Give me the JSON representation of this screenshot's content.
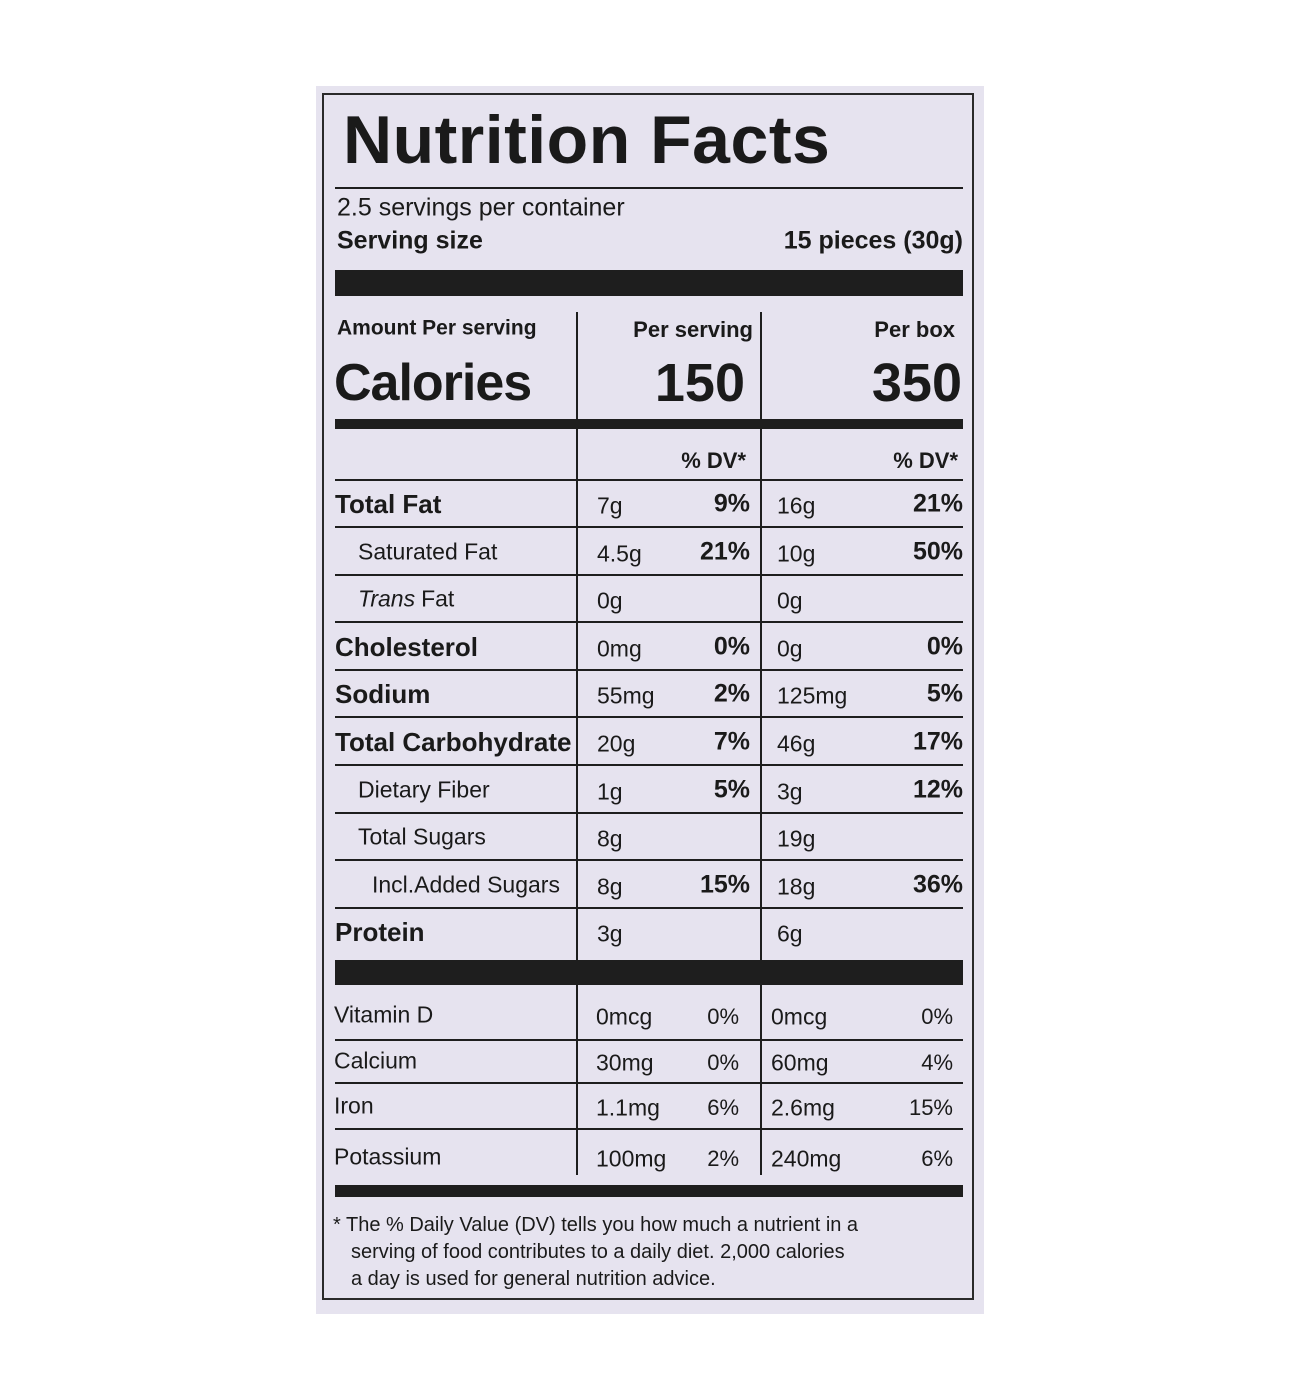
{
  "title": "Nutrition Facts",
  "servings_per_container": "2.5 servings per container",
  "serving_size": {
    "label": "Serving size",
    "value": "15 pieces (30g)"
  },
  "calories": {
    "amount_label": "Amount Per serving",
    "per_serving_label": "Per serving",
    "per_box_label": "Per box",
    "label": "Calories",
    "per_serving": "150",
    "per_box": "350"
  },
  "dv_header": {
    "per_serving": "% DV*",
    "per_box": "% DV*"
  },
  "nutrients": [
    {
      "label": "Total Fat",
      "style": "main",
      "per_serving": {
        "amount": "7g",
        "dv": "9%"
      },
      "per_box": {
        "amount": "16g",
        "dv": "21%"
      }
    },
    {
      "label": "Saturated Fat",
      "style": "sub",
      "per_serving": {
        "amount": "4.5g",
        "dv": "21%"
      },
      "per_box": {
        "amount": "10g",
        "dv": "50%"
      }
    },
    {
      "label_prefix": "Trans",
      "label": "Fat",
      "style": "sub",
      "per_serving": {
        "amount": "0g"
      },
      "per_box": {
        "amount": "0g"
      }
    },
    {
      "label": "Cholesterol",
      "style": "main",
      "per_serving": {
        "amount": "0mg",
        "dv": "0%"
      },
      "per_box": {
        "amount": "0g",
        "dv": "0%"
      }
    },
    {
      "label": "Sodium",
      "style": "main",
      "per_serving": {
        "amount": "55mg",
        "dv": "2%"
      },
      "per_box": {
        "amount": "125mg",
        "dv": "5%"
      }
    },
    {
      "label": "Total Carbohydrate",
      "style": "main",
      "per_serving": {
        "amount": "20g",
        "dv": "7%"
      },
      "per_box": {
        "amount": "46g",
        "dv": "17%"
      }
    },
    {
      "label": "Dietary Fiber",
      "style": "sub",
      "per_serving": {
        "amount": "1g",
        "dv": "5%"
      },
      "per_box": {
        "amount": "3g",
        "dv": "12%"
      }
    },
    {
      "label": "Total Sugars",
      "style": "sub",
      "per_serving": {
        "amount": "8g"
      },
      "per_box": {
        "amount": "19g"
      }
    },
    {
      "label": "Incl.Added Sugars",
      "style": "subsub",
      "per_serving": {
        "amount": "8g",
        "dv": "15%"
      },
      "per_box": {
        "amount": "18g",
        "dv": "36%"
      }
    },
    {
      "label": "Protein",
      "style": "main",
      "per_serving": {
        "amount": "3g"
      },
      "per_box": {
        "amount": "6g"
      }
    }
  ],
  "minerals": [
    {
      "label": "Vitamin D",
      "per_serving": {
        "amount": "0mcg",
        "dv": "0%"
      },
      "per_box": {
        "amount": "0mcg",
        "dv": "0%"
      }
    },
    {
      "label": "Calcium",
      "per_serving": {
        "amount": "30mg",
        "dv": "0%"
      },
      "per_box": {
        "amount": "60mg",
        "dv": "4%"
      }
    },
    {
      "label": "Iron",
      "per_serving": {
        "amount": "1.1mg",
        "dv": "6%"
      },
      "per_box": {
        "amount": "2.6mg",
        "dv": "15%"
      }
    },
    {
      "label": "Potassium",
      "per_serving": {
        "amount": "100mg",
        "dv": "2%"
      },
      "per_box": {
        "amount": "240mg",
        "dv": "6%"
      }
    }
  ],
  "footnote": [
    "* The % Daily Value (DV) tells you how much a nutrient in a",
    "serving of food contributes to a daily diet. 2,000 calories",
    "a day is used for general nutrition advice."
  ]
}
